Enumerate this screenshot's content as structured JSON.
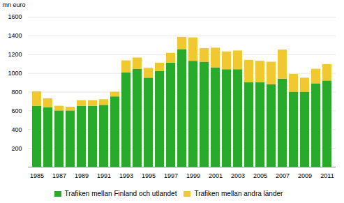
{
  "chart_data": {
    "type": "bar",
    "stacked": true,
    "ylabel": "mn euro",
    "categories": [
      "1985",
      null,
      "1987",
      null,
      "1989",
      null,
      "1991",
      null,
      "1993",
      null,
      "1995",
      null,
      "1997",
      null,
      "1999",
      null,
      "2001",
      null,
      "2003",
      null,
      "2005",
      null,
      "2007",
      null,
      "2009",
      null,
      "2011"
    ],
    "series": [
      {
        "name": "Trafiken mellan Finland och utlandet",
        "color": "#2aaa2a",
        "values": [
          650,
          635,
          600,
          600,
          650,
          650,
          660,
          750,
          1005,
          1045,
          950,
          1020,
          1110,
          1255,
          1130,
          1120,
          1060,
          1040,
          1040,
          900,
          900,
          880,
          940,
          800,
          800,
          890,
          920
        ]
      },
      {
        "name": "Trafiken mellan andra länder",
        "color": "#f0c830",
        "values": [
          155,
          95,
          50,
          40,
          60,
          60,
          60,
          50,
          130,
          120,
          105,
          90,
          105,
          130,
          250,
          145,
          210,
          190,
          200,
          240,
          230,
          240,
          310,
          190,
          150,
          155,
          175
        ]
      }
    ],
    "ylim": [
      0,
      1600
    ],
    "yticks": [
      200,
      400,
      600,
      800,
      1000,
      1200,
      1400,
      1600
    ],
    "grid": true,
    "legend": "bottom"
  }
}
